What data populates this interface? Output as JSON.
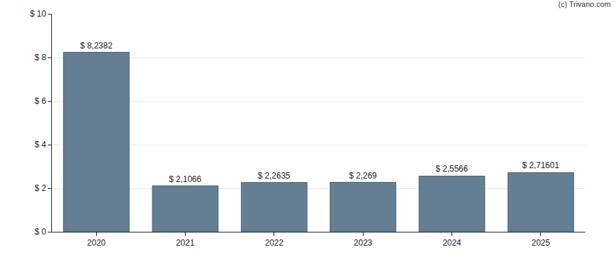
{
  "chart_data": {
    "type": "bar",
    "categories": [
      "2020",
      "2021",
      "2022",
      "2023",
      "2024",
      "2025"
    ],
    "values": [
      8.2382,
      2.1066,
      2.2635,
      2.269,
      2.5566,
      2.71601
    ],
    "value_labels": [
      "$ 8,2382",
      "$ 2,1066",
      "$ 2,2635",
      "$ 2,269",
      "$ 2,5566",
      "$ 2,71601"
    ],
    "data_labels": true,
    "color": "#647f93",
    "ylim": [
      0,
      10
    ],
    "yticks": [
      {
        "value": 0,
        "label": "$ 0"
      },
      {
        "value": 2,
        "label": "$ 2"
      },
      {
        "value": 4,
        "label": "$ 4"
      },
      {
        "value": 6,
        "label": "$ 6"
      },
      {
        "value": 8,
        "label": "$ 8"
      },
      {
        "value": 10,
        "label": "$ 10"
      }
    ],
    "grid": true,
    "annotations": [
      "(c) Trivano.com"
    ]
  }
}
